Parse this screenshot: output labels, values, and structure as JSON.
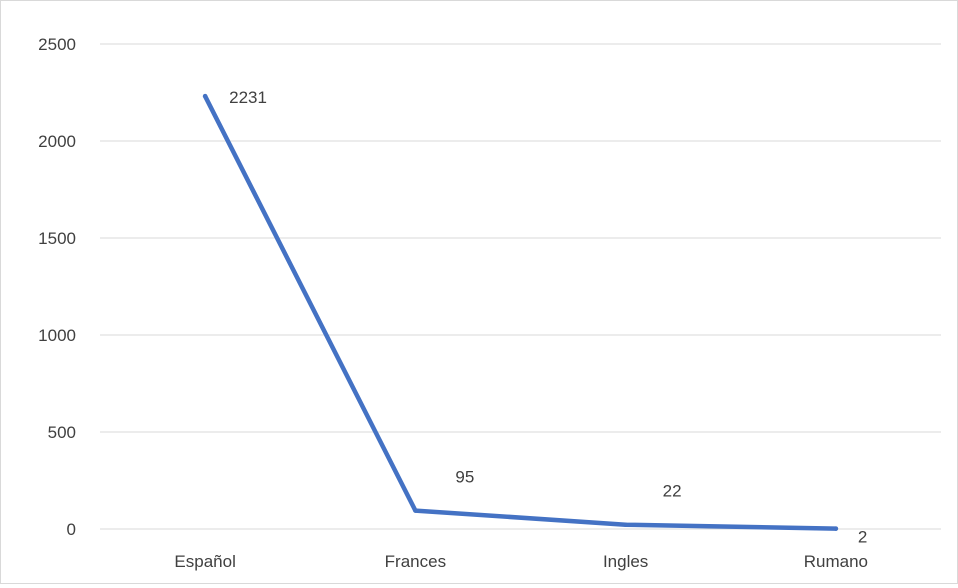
{
  "chart_data": {
    "type": "line",
    "title": "",
    "xlabel": "",
    "ylabel": "",
    "categories": [
      "Español",
      "Frances",
      "Ingles",
      "Rumano"
    ],
    "series": [
      {
        "values": [
          2231,
          95,
          22,
          2
        ],
        "data_labels": [
          "2231",
          "95",
          "22",
          "2"
        ]
      }
    ],
    "ylim": [
      0,
      2500
    ],
    "y_ticks": [
      0,
      500,
      1000,
      1500,
      2000,
      2500
    ],
    "y_tick_labels": [
      "0",
      "500",
      "1000",
      "1500",
      "2000",
      "2500"
    ],
    "grid": true,
    "legend": "none",
    "colors": {
      "line": "#4472C4",
      "gridline": "#d9d9d9",
      "text": "#404040"
    }
  }
}
